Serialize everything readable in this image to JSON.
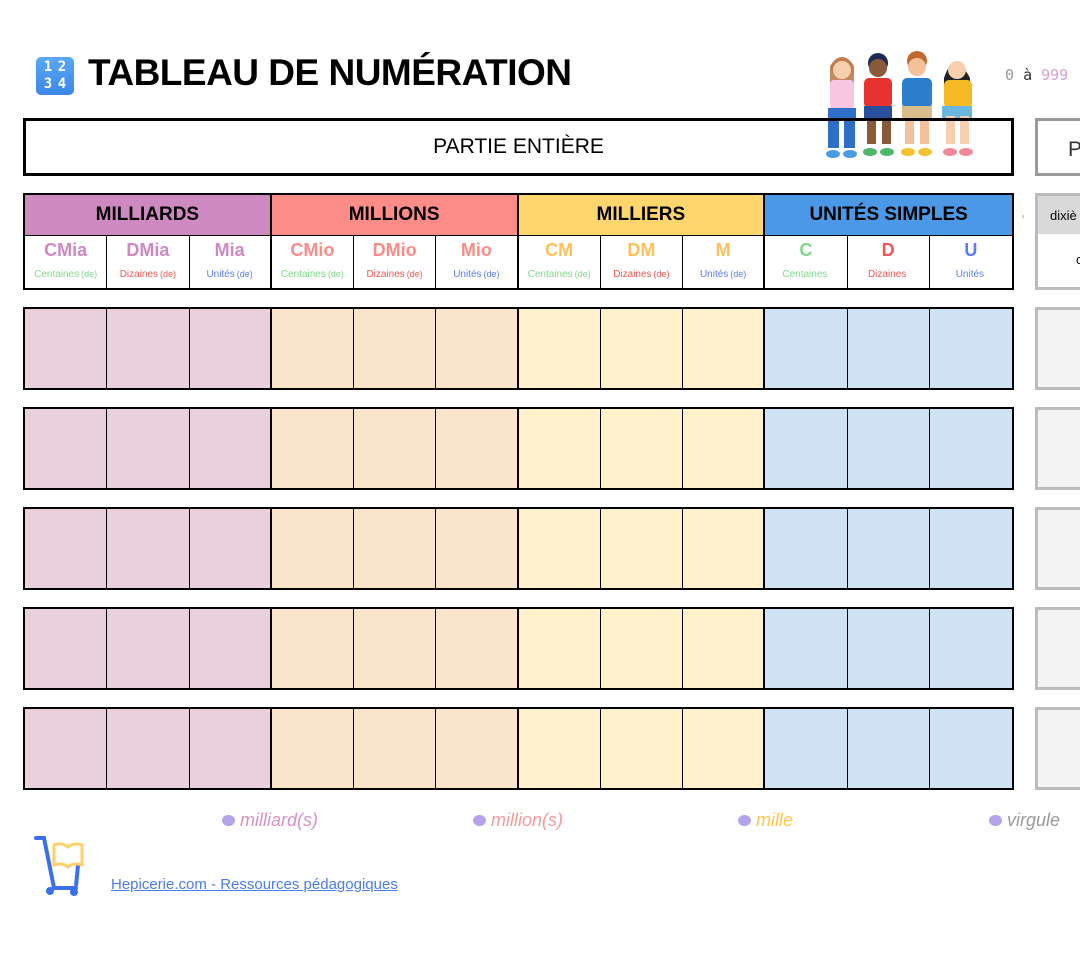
{
  "header": {
    "icon_digits": [
      "1",
      "2",
      "3",
      "4"
    ],
    "title": "TABLEAU DE NUMÉRATION",
    "range_from": "0",
    "range_word": "à",
    "range_to": "999"
  },
  "partie_entiere": "PARTIE ENTIÈRE",
  "partie_decimale_partial": "P",
  "groups": [
    {
      "label": "MILLIARDS",
      "color": "#CE89C0",
      "fill": "#E9D0DC",
      "cols": [
        {
          "abbr": "CMia",
          "name": "Centaines",
          "suffix": "(de)"
        },
        {
          "abbr": "DMia",
          "name": "Dizaines",
          "suffix": "(de)"
        },
        {
          "abbr": "Mia",
          "name": "Unités",
          "suffix": "(de)"
        }
      ]
    },
    {
      "label": "MILLIONS",
      "color": "#FB8C88",
      "fill": "#FBE4CC",
      "cols": [
        {
          "abbr": "CMio",
          "name": "Centaines",
          "suffix": "(de)"
        },
        {
          "abbr": "DMio",
          "name": "Dizaines",
          "suffix": "(de)"
        },
        {
          "abbr": "Mio",
          "name": "Unités",
          "suffix": "(de)"
        }
      ]
    },
    {
      "label": "MILLIERS",
      "color": "#FFD56E",
      "fill": "#FFF1CC",
      "cols": [
        {
          "abbr": "CM",
          "name": "Centaines",
          "suffix": "(de)"
        },
        {
          "abbr": "DM",
          "name": "Dizaines",
          "suffix": "(de)"
        },
        {
          "abbr": "M",
          "name": "Unités",
          "suffix": "(de)"
        }
      ]
    },
    {
      "label": "UNITÉS SIMPLES",
      "color": "#4A98E6",
      "fill": "#CFE2F3",
      "cols": [
        {
          "abbr": "C",
          "name": "Centaines",
          "suffix": ""
        },
        {
          "abbr": "D",
          "name": "Dizaines",
          "suffix": ""
        },
        {
          "abbr": "U",
          "name": "Unités",
          "suffix": ""
        }
      ]
    }
  ],
  "colors": {
    "abbr": [
      "#CE89C0",
      "#FB8C88",
      "#FFC05A",
      "#7ED88A",
      "#F25656",
      "#5B7CF5"
    ],
    "centaines": "#7ED88A",
    "dizaines": "#F25656",
    "unites": "#5B7CF5"
  },
  "decimal": {
    "comma": ",",
    "header_partial": "dixiè",
    "sub_partial": "c"
  },
  "words": [
    {
      "label": "milliard(s)",
      "color": "#D691C9"
    },
    {
      "label": "million(s)",
      "color": "#F59A9A"
    },
    {
      "label": "mille",
      "color": "#FFC64A"
    },
    {
      "label": "virgule",
      "color": "#999999"
    }
  ],
  "footer": {
    "link": "Hepicerie.com - Ressources pédagogiques"
  }
}
